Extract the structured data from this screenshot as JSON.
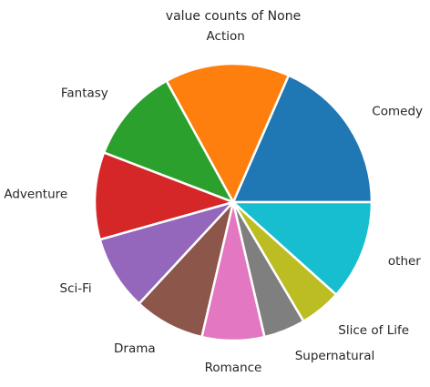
{
  "chart_data": {
    "type": "pie",
    "title": "value counts of None",
    "categories": [
      "Comedy",
      "Action",
      "Fantasy",
      "Adventure",
      "Sci-Fi",
      "Drama",
      "Romance",
      "Supernatural",
      "Slice of Life",
      "other"
    ],
    "values": [
      19,
      15,
      11.5,
      10.5,
      9,
      8.5,
      7.5,
      5,
      5,
      12
    ],
    "colors": [
      "#1f77b4",
      "#ff7f0e",
      "#2ca02c",
      "#d62728",
      "#9467bd",
      "#8c564b",
      "#e377c2",
      "#7f7f7f",
      "#bcbd22",
      "#17becf"
    ],
    "start_angle_deg": 0,
    "direction": "counterclockwise",
    "legend": "none"
  }
}
